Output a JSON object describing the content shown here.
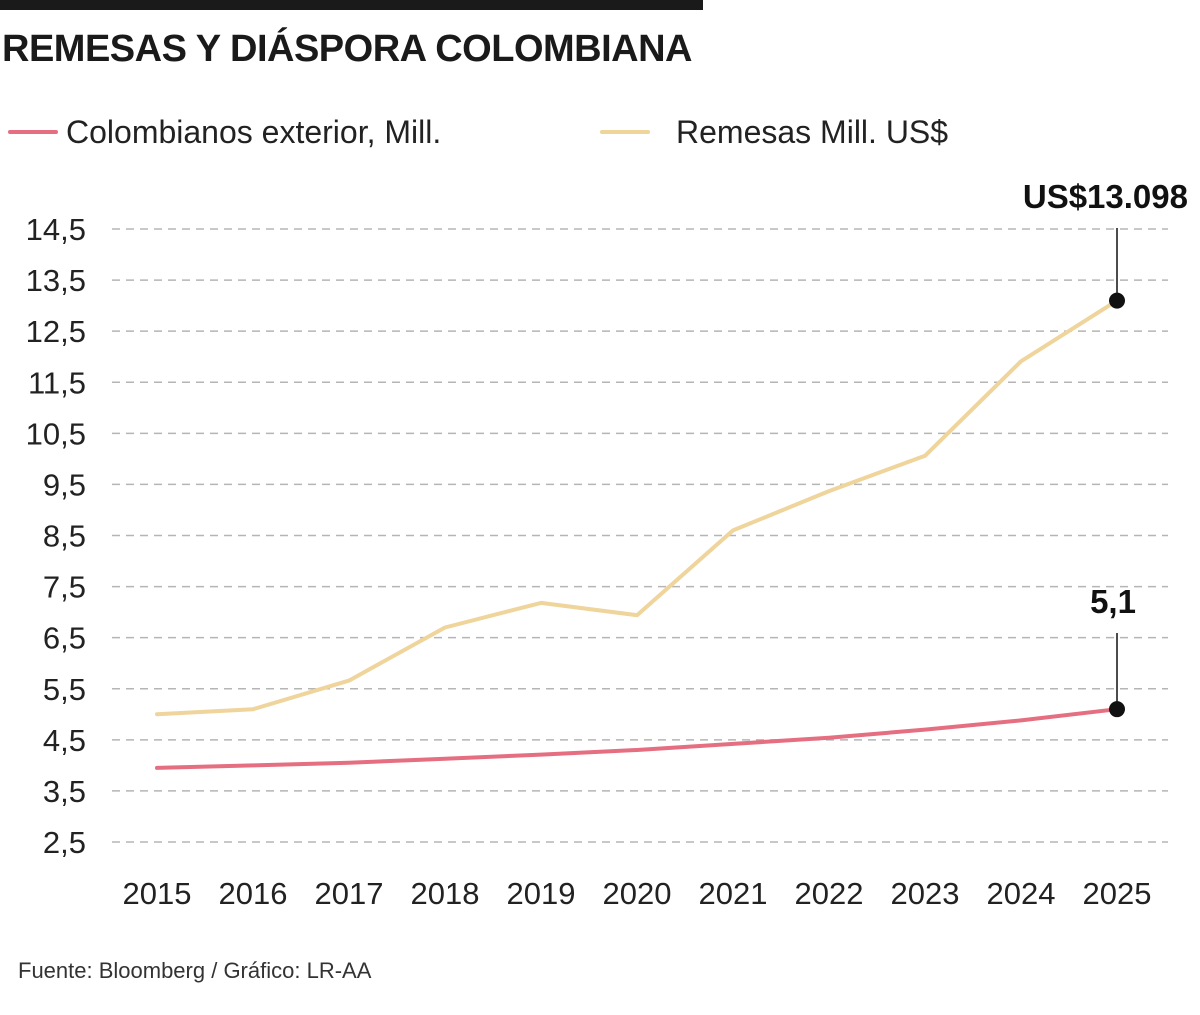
{
  "header": {
    "title": "REMESAS Y DIÁSPORA COLOMBIANA"
  },
  "legend": {
    "items": [
      {
        "label": "Colombianos exterior, Mill.",
        "color": "#e56e80"
      },
      {
        "label": "Remesas Mill. US$",
        "color": "#efd49b"
      }
    ]
  },
  "chart_data": {
    "type": "line",
    "categories": [
      "2015",
      "2016",
      "2017",
      "2018",
      "2019",
      "2020",
      "2021",
      "2022",
      "2023",
      "2024",
      "2025"
    ],
    "y_ticks": [
      "14,5",
      "13,5",
      "12,5",
      "11,5",
      "10,5",
      "9,5",
      "8,5",
      "7,5",
      "6,5",
      "5,5",
      "4,5",
      "3,5",
      "2,5"
    ],
    "ylim": [
      2.5,
      14.5
    ],
    "grid": true,
    "legend_position": "top-left",
    "series": [
      {
        "name": "Colombianos exterior, Mill.",
        "color": "#e56e80",
        "values": [
          3.95,
          4.0,
          4.05,
          4.13,
          4.21,
          4.3,
          4.42,
          4.54,
          4.7,
          4.88,
          5.1
        ]
      },
      {
        "name": "Remesas Mill. US$",
        "color": "#efd49b",
        "values": [
          5.0,
          5.1,
          5.66,
          6.7,
          7.18,
          6.94,
          8.6,
          9.37,
          10.06,
          11.91,
          13.098
        ]
      }
    ],
    "annotations": [
      {
        "text": "US$13.098",
        "series": 1,
        "index": 10
      },
      {
        "text": "5,1",
        "series": 0,
        "index": 10
      }
    ]
  },
  "footer": {
    "source": "Fuente: Bloomberg / Gráfico: LR-AA"
  }
}
